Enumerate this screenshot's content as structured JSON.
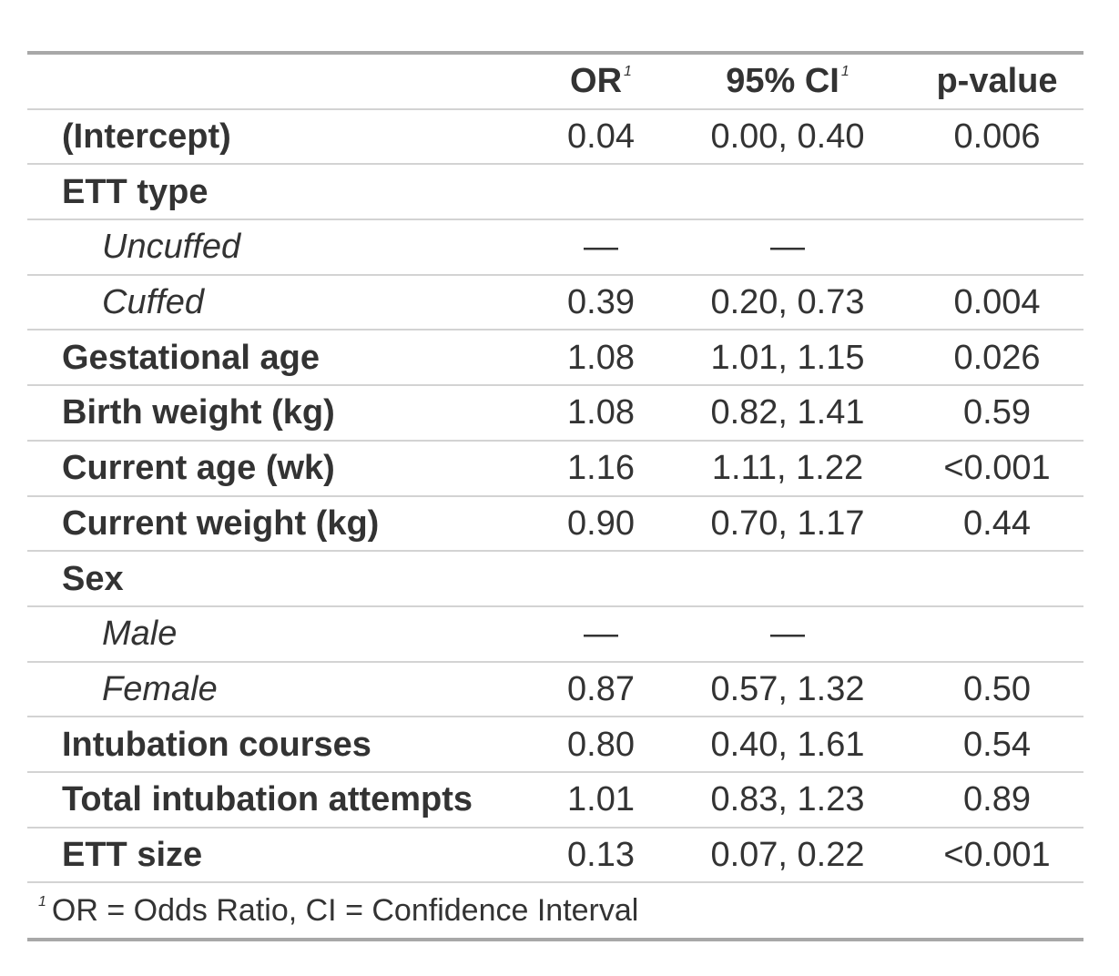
{
  "header": {
    "label": "",
    "or": "OR",
    "ci": "95% CI",
    "p": "p-value",
    "footnote_mark": "1"
  },
  "rows": [
    {
      "label": "(Intercept)",
      "or": "0.04",
      "ci": "0.00, 0.40",
      "p": "0.006"
    },
    {
      "label": "ETT type",
      "or": "",
      "ci": "",
      "p": ""
    },
    {
      "label": "Uncuffed",
      "or": "—",
      "ci": "—",
      "p": ""
    },
    {
      "label": "Cuffed",
      "or": "0.39",
      "ci": "0.20, 0.73",
      "p": "0.004"
    },
    {
      "label": "Gestational age",
      "or": "1.08",
      "ci": "1.01, 1.15",
      "p": "0.026"
    },
    {
      "label": "Birth weight (kg)",
      "or": "1.08",
      "ci": "0.82, 1.41",
      "p": "0.59"
    },
    {
      "label": "Current age (wk)",
      "or": "1.16",
      "ci": "1.11, 1.22",
      "p": "<0.001"
    },
    {
      "label": "Current weight (kg)",
      "or": "0.90",
      "ci": "0.70, 1.17",
      "p": "0.44"
    },
    {
      "label": "Sex",
      "or": "",
      "ci": "",
      "p": ""
    },
    {
      "label": "Male",
      "or": "—",
      "ci": "—",
      "p": ""
    },
    {
      "label": "Female",
      "or": "0.87",
      "ci": "0.57, 1.32",
      "p": "0.50"
    },
    {
      "label": "Intubation courses",
      "or": "0.80",
      "ci": "0.40, 1.61",
      "p": "0.54"
    },
    {
      "label": "Total intubation attempts",
      "or": "1.01",
      "ci": "0.83, 1.23",
      "p": "0.89"
    },
    {
      "label": "ETT size",
      "or": "0.13",
      "ci": "0.07, 0.22",
      "p": "<0.001"
    }
  ],
  "footnote": {
    "mark": "1",
    "text": "OR = Odds Ratio, CI = Confidence Interval"
  },
  "colors": {
    "text": "#333333",
    "outer_rule": "#a8a8a8",
    "inner_rule": "#d3d3d3"
  }
}
